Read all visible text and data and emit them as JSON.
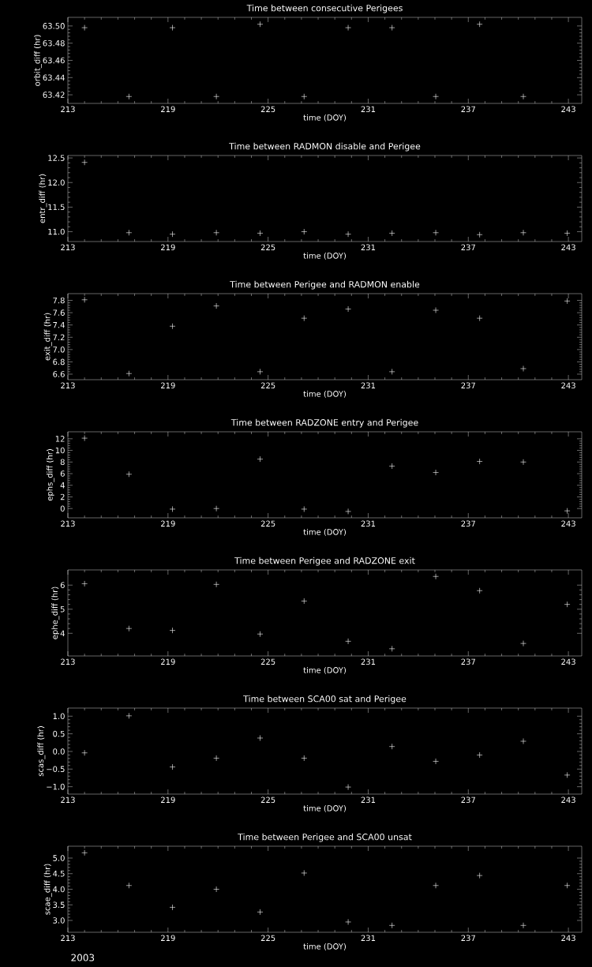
{
  "chart_data": [
    {
      "type": "scatter",
      "title": "Time between consecutive Perigees",
      "xlabel": "time (DOY)",
      "ylabel": "orbit_diff (hr)",
      "marker": "cross",
      "color": "#ffffff",
      "x": [
        214.0,
        216.66,
        219.27,
        221.9,
        224.52,
        227.16,
        229.8,
        232.43,
        235.05,
        237.68,
        240.3
      ],
      "values": [
        63.498,
        63.418,
        63.498,
        63.418,
        63.502,
        63.418,
        63.498,
        63.498,
        63.418,
        63.502,
        63.418
      ],
      "xlim": [
        213,
        243.8
      ],
      "xticks": [
        213,
        219,
        225,
        231,
        237,
        243
      ],
      "ylim": [
        63.41,
        63.51
      ],
      "yticks": [
        {
          "value": 63.42,
          "label": "63.42"
        },
        {
          "value": 63.44,
          "label": "63.44"
        },
        {
          "value": 63.46,
          "label": "63.46"
        },
        {
          "value": 63.48,
          "label": "63.48"
        },
        {
          "value": 63.5,
          "label": "63.50"
        }
      ]
    },
    {
      "type": "scatter",
      "title": "Time between RADMON disable and Perigee",
      "xlabel": "time (DOY)",
      "ylabel": "entr_diff (hr)",
      "marker": "cross",
      "color": "#ffffff",
      "x": [
        214.0,
        216.66,
        219.27,
        221.9,
        224.52,
        227.16,
        229.8,
        232.43,
        235.05,
        237.68,
        240.3,
        242.93
      ],
      "values": [
        12.41,
        10.98,
        10.95,
        10.98,
        10.97,
        11.0,
        10.95,
        10.97,
        10.98,
        10.94,
        10.98,
        10.97
      ],
      "xlim": [
        213,
        243.8
      ],
      "xticks": [
        213,
        219,
        225,
        231,
        237,
        243
      ],
      "ylim": [
        10.8,
        12.55
      ],
      "yticks": [
        {
          "value": 11,
          "label": "11.0"
        },
        {
          "value": 11.5,
          "label": "11.5"
        },
        {
          "value": 12,
          "label": "12.0"
        },
        {
          "value": 12.5,
          "label": "12.5"
        }
      ]
    },
    {
      "type": "scatter",
      "title": "Time between Perigee and RADMON enable",
      "xlabel": "time (DOY)",
      "ylabel": "exit_diff (hr)",
      "marker": "cross",
      "color": "#ffffff",
      "x": [
        214.0,
        216.66,
        219.27,
        221.9,
        224.52,
        227.16,
        229.8,
        232.43,
        235.05,
        237.68,
        240.3,
        242.93
      ],
      "values": [
        7.81,
        6.61,
        7.38,
        7.71,
        6.64,
        7.51,
        7.66,
        6.64,
        7.64,
        7.51,
        6.69,
        7.79
      ],
      "xlim": [
        213,
        243.8
      ],
      "xticks": [
        213,
        219,
        225,
        231,
        237,
        243
      ],
      "ylim": [
        6.51,
        7.91
      ],
      "yticks": [
        6.6,
        6.8,
        {
          "value": 7,
          "label": "7.0"
        },
        7.2,
        7.4,
        7.6,
        7.8
      ]
    },
    {
      "type": "scatter",
      "title": "Time between RADZONE entry and Perigee",
      "xlabel": "time (DOY)",
      "ylabel": "ephs_diff (hr)",
      "marker": "cross",
      "color": "#ffffff",
      "x": [
        214.0,
        216.66,
        219.27,
        221.9,
        224.52,
        227.16,
        229.8,
        232.43,
        235.05,
        237.68,
        240.3,
        242.93
      ],
      "values": [
        12.1,
        5.9,
        -0.1,
        0.0,
        8.5,
        -0.1,
        -0.5,
        7.3,
        6.2,
        8.1,
        8.0,
        -0.4
      ],
      "xlim": [
        213,
        243.8
      ],
      "xticks": [
        213,
        219,
        225,
        231,
        237,
        243
      ],
      "ylim": [
        -1.6,
        13.2
      ],
      "yticks": [
        0,
        2,
        4,
        6,
        8,
        10,
        12
      ]
    },
    {
      "type": "scatter",
      "title": "Time between Perigee and RADZONE exit",
      "xlabel": "time (DOY)",
      "ylabel": "ephe_diff (hr)",
      "marker": "cross",
      "color": "#ffffff",
      "x": [
        214.0,
        216.66,
        219.27,
        221.9,
        224.52,
        227.16,
        229.8,
        232.43,
        235.05,
        237.68,
        240.3,
        242.93
      ],
      "values": [
        6.06,
        4.2,
        4.12,
        6.03,
        3.97,
        5.34,
        3.67,
        3.36,
        6.36,
        5.77,
        3.58,
        5.2
      ],
      "xlim": [
        213,
        243.8
      ],
      "xticks": [
        213,
        219,
        225,
        231,
        237,
        243
      ],
      "ylim": [
        3.06,
        6.63
      ],
      "yticks": [
        4,
        5,
        6
      ]
    },
    {
      "type": "scatter",
      "title": "Time between SCA00 sat and Perigee",
      "xlabel": "time (DOY)",
      "ylabel": "scas_diff (hr)",
      "marker": "cross",
      "color": "#ffffff",
      "x": [
        214.0,
        216.66,
        219.27,
        221.9,
        224.52,
        227.16,
        229.8,
        232.43,
        235.05,
        237.68,
        240.3,
        242.93
      ],
      "values": [
        -0.04,
        1.01,
        -0.44,
        -0.19,
        0.38,
        -0.19,
        -1.01,
        0.14,
        -0.28,
        -0.1,
        0.29,
        -0.67
      ],
      "xlim": [
        213,
        243.8
      ],
      "xticks": [
        213,
        219,
        225,
        231,
        237,
        243
      ],
      "ylim": [
        -1.21,
        1.23
      ],
      "yticks": [
        {
          "value": -1,
          "label": "−1.0"
        },
        {
          "value": -0.5,
          "label": "−0.5"
        },
        {
          "value": 0,
          "label": "0.0"
        },
        {
          "value": 0.5,
          "label": "0.5"
        },
        {
          "value": 1,
          "label": "1.0"
        }
      ]
    },
    {
      "type": "scatter",
      "title": "Time between Perigee and SCA00 unsat",
      "xlabel": "time (DOY)",
      "ylabel": "scae_diff (hr)",
      "marker": "cross",
      "color": "#ffffff",
      "x": [
        214.0,
        216.66,
        219.27,
        221.9,
        224.52,
        227.16,
        229.8,
        232.43,
        235.05,
        237.68,
        240.3,
        242.93
      ],
      "values": [
        5.17,
        4.12,
        3.42,
        4.0,
        3.27,
        4.52,
        2.95,
        2.84,
        4.12,
        4.44,
        2.84,
        4.12
      ],
      "xlim": [
        213,
        243.8
      ],
      "xticks": [
        213,
        219,
        225,
        231,
        237,
        243
      ],
      "ylim": [
        2.62,
        5.38
      ],
      "yticks": [
        {
          "value": 3,
          "label": "3.0"
        },
        {
          "value": 3.5,
          "label": "3.5"
        },
        {
          "value": 4,
          "label": "4.0"
        },
        {
          "value": 4.5,
          "label": "4.5"
        },
        {
          "value": 5,
          "label": "5.0"
        }
      ],
      "annotations": [
        "2003"
      ]
    }
  ]
}
